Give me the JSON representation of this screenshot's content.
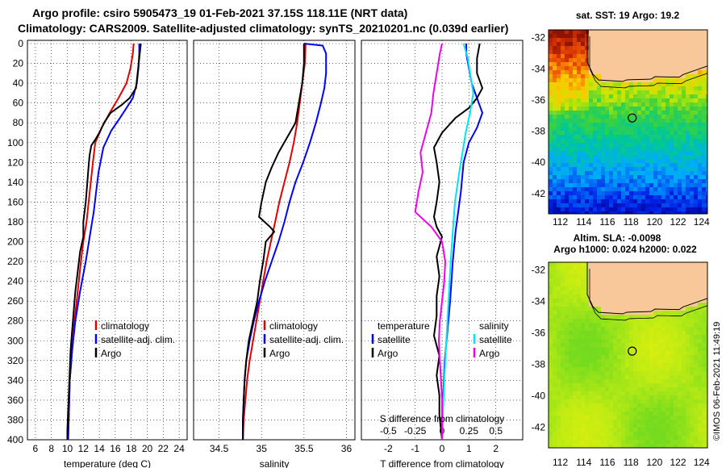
{
  "header": {
    "line1": "Argo profile: csiro 5905473_19 01-Feb-2021 37.15S 118.11E (NRT data)",
    "line2": "Climatology: CARS2009. Satellite-adjusted climatology: synTS_20210201.nc (0.039d earlier)"
  },
  "watermark": "©IMOS 06-Feb-2021 11:49:19",
  "colors": {
    "climatology": "#e00000",
    "satellite": "#0000ff",
    "argo": "#000000",
    "cyan": "#00e5ee",
    "magenta": "#ee00ee",
    "land": "#f8c89a"
  },
  "chart_data": [
    {
      "type": "line",
      "name": "temperature",
      "xlabel": "temperature (deg C)",
      "ylabel": "",
      "xlim": [
        5,
        25
      ],
      "ylim": [
        400,
        0
      ],
      "xticks": [
        "6",
        "8",
        "10",
        "12",
        "14",
        "16",
        "18",
        "20",
        "22",
        "24"
      ],
      "yticks": [
        "0",
        "20",
        "40",
        "60",
        "80",
        "100",
        "120",
        "140",
        "160",
        "180",
        "200",
        "220",
        "240",
        "260",
        "280",
        "300",
        "320",
        "340",
        "360",
        "380",
        "400"
      ],
      "legend": [
        "climatology",
        "satellite-adj. clim.",
        "Argo"
      ],
      "series": [
        {
          "name": "climatology",
          "color": "#e00000",
          "points": [
            [
              18.3,
              0
            ],
            [
              18.2,
              10
            ],
            [
              17.9,
              25
            ],
            [
              17.4,
              40
            ],
            [
              16.4,
              55
            ],
            [
              15.3,
              70
            ],
            [
              14.3,
              85
            ],
            [
              13.5,
              100
            ],
            [
              13.2,
              120
            ],
            [
              12.8,
              150
            ],
            [
              12.4,
              180
            ],
            [
              12.0,
              200
            ],
            [
              11.7,
              220
            ],
            [
              11.3,
              250
            ],
            [
              10.9,
              280
            ],
            [
              10.6,
              310
            ],
            [
              10.3,
              340
            ],
            [
              10.2,
              370
            ],
            [
              10.1,
              400
            ]
          ]
        },
        {
          "name": "satellite-adj. clim.",
          "color": "#0000ff",
          "points": [
            [
              19.0,
              0
            ],
            [
              19.0,
              10
            ],
            [
              18.9,
              25
            ],
            [
              18.7,
              40
            ],
            [
              18.2,
              55
            ],
            [
              17.4,
              65
            ],
            [
              16.6,
              75
            ],
            [
              15.5,
              88
            ],
            [
              14.5,
              105
            ],
            [
              13.9,
              130
            ],
            [
              13.6,
              150
            ],
            [
              13.3,
              170
            ],
            [
              12.9,
              190
            ],
            [
              12.3,
              220
            ],
            [
              11.6,
              250
            ],
            [
              11.0,
              280
            ],
            [
              10.6,
              310
            ],
            [
              10.3,
              340
            ],
            [
              10.2,
              370
            ],
            [
              10.1,
              400
            ]
          ]
        },
        {
          "name": "Argo",
          "color": "#000000",
          "points": [
            [
              19.2,
              0
            ],
            [
              19.0,
              15
            ],
            [
              18.8,
              30
            ],
            [
              18.6,
              45
            ],
            [
              17.8,
              55
            ],
            [
              16.8,
              62
            ],
            [
              15.4,
              70
            ],
            [
              14.6,
              80
            ],
            [
              14.0,
              90
            ],
            [
              13.5,
              97
            ],
            [
              13.0,
              103
            ],
            [
              12.8,
              112
            ],
            [
              12.7,
              120
            ],
            [
              12.5,
              140
            ],
            [
              12.3,
              160
            ],
            [
              12.0,
              180
            ],
            [
              12.0,
              195
            ],
            [
              11.6,
              210
            ],
            [
              11.3,
              230
            ],
            [
              11.0,
              250
            ],
            [
              10.8,
              270
            ],
            [
              10.6,
              290
            ],
            [
              10.4,
              310
            ],
            [
              10.3,
              330
            ],
            [
              10.2,
              350
            ],
            [
              10.1,
              370
            ],
            [
              10.0,
              390
            ],
            [
              10.0,
              400
            ]
          ]
        }
      ]
    },
    {
      "type": "line",
      "name": "salinity",
      "xlabel": "salinity",
      "ylabel": "",
      "xlim": [
        34.2,
        36.1
      ],
      "ylim": [
        400,
        0
      ],
      "xticks": [
        "34.5",
        "35",
        "35.5",
        "36"
      ],
      "legend": [
        "climatology",
        "satellite-adj. clim.",
        "Argo"
      ],
      "series": [
        {
          "name": "climatology",
          "color": "#e00000",
          "points": [
            [
              35.52,
              0
            ],
            [
              35.51,
              20
            ],
            [
              35.48,
              40
            ],
            [
              35.45,
              60
            ],
            [
              35.42,
              80
            ],
            [
              35.38,
              100
            ],
            [
              35.33,
              120
            ],
            [
              35.27,
              140
            ],
            [
              35.21,
              160
            ],
            [
              35.16,
              180
            ],
            [
              35.11,
              200
            ],
            [
              35.06,
              220
            ],
            [
              35.02,
              240
            ],
            [
              34.98,
              260
            ],
            [
              34.94,
              280
            ],
            [
              34.9,
              300
            ],
            [
              34.86,
              320
            ],
            [
              34.83,
              340
            ],
            [
              34.81,
              360
            ],
            [
              34.79,
              380
            ],
            [
              34.78,
              400
            ]
          ]
        },
        {
          "name": "satellite-adj. clim.",
          "color": "#0000ff",
          "points": [
            [
              35.5,
              0
            ],
            [
              35.72,
              2
            ],
            [
              35.76,
              10
            ],
            [
              35.76,
              30
            ],
            [
              35.74,
              45
            ],
            [
              35.7,
              60
            ],
            [
              35.64,
              80
            ],
            [
              35.57,
              100
            ],
            [
              35.49,
              120
            ],
            [
              35.4,
              140
            ],
            [
              35.33,
              160
            ],
            [
              35.27,
              180
            ],
            [
              35.2,
              200
            ],
            [
              35.12,
              220
            ],
            [
              35.04,
              240
            ],
            [
              34.97,
              260
            ],
            [
              34.91,
              280
            ],
            [
              34.86,
              300
            ],
            [
              34.82,
              320
            ],
            [
              34.8,
              340
            ],
            [
              34.79,
              360
            ],
            [
              34.78,
              380
            ],
            [
              34.78,
              400
            ]
          ]
        },
        {
          "name": "Argo",
          "color": "#000000",
          "points": [
            [
              35.5,
              0
            ],
            [
              35.5,
              20
            ],
            [
              35.48,
              40
            ],
            [
              35.44,
              60
            ],
            [
              35.4,
              80
            ],
            [
              35.3,
              95
            ],
            [
              35.2,
              110
            ],
            [
              35.12,
              125
            ],
            [
              35.05,
              140
            ],
            [
              35.0,
              160
            ],
            [
              34.97,
              175
            ],
            [
              35.1,
              185
            ],
            [
              35.15,
              190
            ],
            [
              35.05,
              200
            ],
            [
              35.02,
              220
            ],
            [
              34.98,
              240
            ],
            [
              34.95,
              260
            ],
            [
              34.9,
              280
            ],
            [
              34.85,
              300
            ],
            [
              34.82,
              320
            ],
            [
              34.8,
              340
            ],
            [
              34.79,
              360
            ],
            [
              34.78,
              380
            ],
            [
              34.78,
              400
            ]
          ]
        }
      ]
    },
    {
      "type": "line",
      "name": "difference",
      "xlabel": "T difference from climatology",
      "xlabel_top": "S difference from climatology",
      "xlim": [
        -3,
        3
      ],
      "xlim_S": [
        -0.75,
        0.75
      ],
      "ylim": [
        400,
        0
      ],
      "xticks": [
        "-2",
        "-1",
        "0",
        "1",
        "2"
      ],
      "xticks_S": [
        "-0.5",
        "-0.25",
        "0",
        "0.25",
        "0.5"
      ],
      "legend_titles": [
        "temperature",
        "salinity"
      ],
      "legend": [
        "satellite",
        "Argo",
        "satellite",
        "Argo"
      ],
      "series": [
        {
          "name": "temperature satellite",
          "color": "#0000ff",
          "points": [
            [
              0.9,
              0
            ],
            [
              0.9,
              10
            ],
            [
              1.0,
              25
            ],
            [
              1.1,
              40
            ],
            [
              1.3,
              55
            ],
            [
              1.5,
              70
            ],
            [
              1.3,
              85
            ],
            [
              1.0,
              100
            ],
            [
              0.8,
              120
            ],
            [
              0.7,
              150
            ],
            [
              0.6,
              170
            ],
            [
              0.5,
              190
            ],
            [
              0.4,
              220
            ],
            [
              0.3,
              260
            ],
            [
              0.2,
              290
            ],
            [
              0.1,
              320
            ],
            [
              0.05,
              350
            ],
            [
              0,
              380
            ],
            [
              0,
              400
            ]
          ]
        },
        {
          "name": "temperature Argo",
          "color": "#000000",
          "points": [
            [
              1.4,
              0
            ],
            [
              1.3,
              15
            ],
            [
              1.3,
              30
            ],
            [
              1.5,
              45
            ],
            [
              1.3,
              55
            ],
            [
              1.0,
              65
            ],
            [
              0.5,
              75
            ],
            [
              0,
              90
            ],
            [
              -0.3,
              105
            ],
            [
              -0.2,
              120
            ],
            [
              -0.1,
              140
            ],
            [
              -0.2,
              160
            ],
            [
              -0.3,
              175
            ],
            [
              -0.2,
              185
            ],
            [
              0,
              195
            ],
            [
              -0.2,
              215
            ],
            [
              -0.1,
              235
            ],
            [
              -0.2,
              255
            ],
            [
              -0.2,
              275
            ],
            [
              -0.3,
              295
            ],
            [
              -0.1,
              315
            ],
            [
              -0.2,
              335
            ],
            [
              -0.1,
              355
            ],
            [
              -0.1,
              375
            ],
            [
              0,
              400
            ]
          ]
        },
        {
          "name": "salinity satellite",
          "color": "#00e5ee",
          "points": [
            [
              0.2,
              0
            ],
            [
              0.24,
              15
            ],
            [
              0.26,
              30
            ],
            [
              0.29,
              50
            ],
            [
              0.26,
              70
            ],
            [
              0.22,
              90
            ],
            [
              0.19,
              110
            ],
            [
              0.16,
              130
            ],
            [
              0.12,
              160
            ],
            [
              0.1,
              190
            ],
            [
              0.08,
              220
            ],
            [
              0.06,
              260
            ],
            [
              0.04,
              300
            ],
            [
              0.02,
              340
            ],
            [
              0.01,
              370
            ],
            [
              0,
              400
            ]
          ]
        },
        {
          "name": "salinity Argo",
          "color": "#ee00ee",
          "points": [
            [
              0,
              0
            ],
            [
              -0.02,
              10
            ],
            [
              -0.05,
              30
            ],
            [
              -0.08,
              50
            ],
            [
              -0.1,
              70
            ],
            [
              -0.15,
              90
            ],
            [
              -0.2,
              110
            ],
            [
              -0.18,
              130
            ],
            [
              -0.22,
              150
            ],
            [
              -0.25,
              170
            ],
            [
              -0.1,
              185
            ],
            [
              0,
              200
            ],
            [
              0.03,
              220
            ],
            [
              0.02,
              240
            ],
            [
              0,
              260
            ],
            [
              -0.02,
              280
            ],
            [
              -0.03,
              300
            ],
            [
              -0.02,
              320
            ],
            [
              -0.01,
              340
            ],
            [
              0,
              360
            ],
            [
              0,
              380
            ],
            [
              0,
              400
            ]
          ]
        }
      ]
    },
    {
      "type": "heatmap",
      "name": "sst-map",
      "title": "sat. SST: 19 Argo: 19.2",
      "xticks": [
        "112",
        "114",
        "116",
        "118",
        "120",
        "122",
        "124"
      ],
      "yticks": [
        "-32",
        "-34",
        "-36",
        "-38",
        "-40",
        "-42"
      ],
      "xlim": [
        111,
        124.5
      ],
      "ylim": [
        -43.3,
        -31.5
      ],
      "marker": [
        118.11,
        -37.15
      ]
    },
    {
      "type": "heatmap",
      "name": "sla-map",
      "title": "Altim. SLA: -0.0098",
      "subtitle": "Argo h1000: 0.024 h2000: 0.022",
      "xticks": [
        "112",
        "114",
        "116",
        "118",
        "120",
        "122",
        "124"
      ],
      "yticks": [
        "-32",
        "-34",
        "-36",
        "-38",
        "-40",
        "-42"
      ],
      "xlim": [
        111,
        124.5
      ],
      "ylim": [
        -43.3,
        -31.5
      ],
      "marker": [
        118.11,
        -37.15
      ]
    }
  ]
}
